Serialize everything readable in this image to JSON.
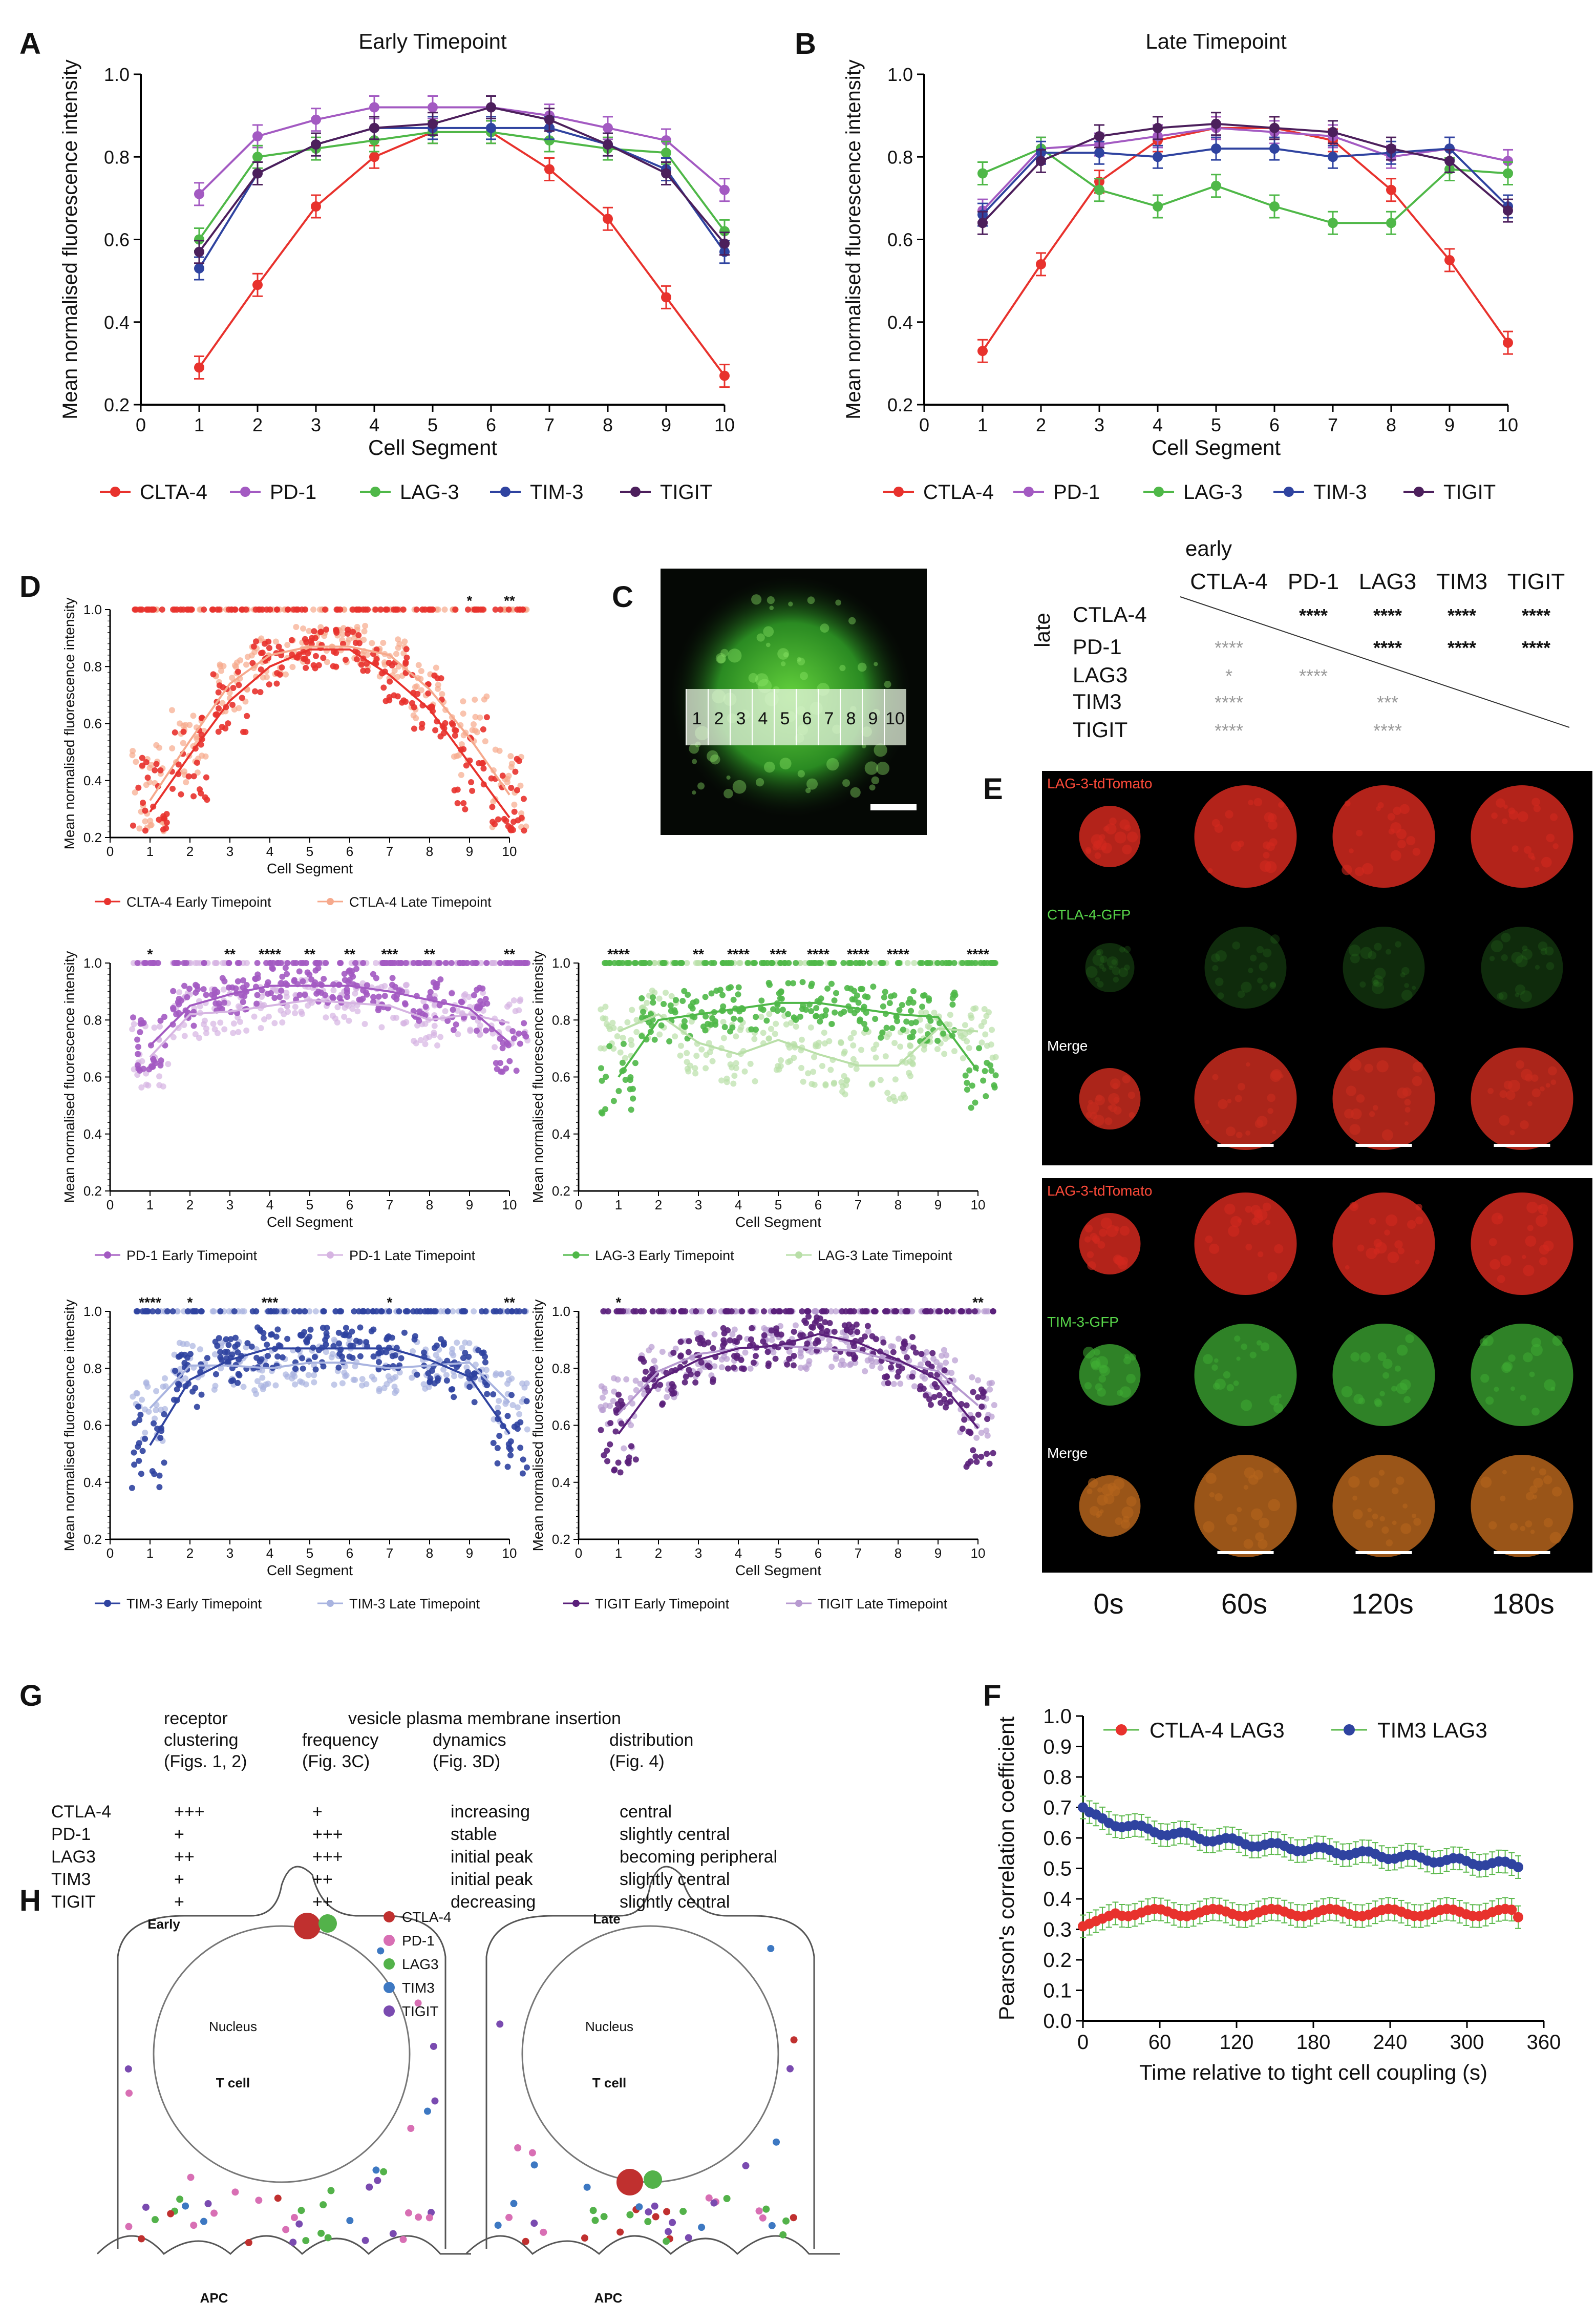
{
  "panels": {
    "A": "A",
    "B": "B",
    "C": "C",
    "D": "D",
    "E": "E",
    "F": "F",
    "G": "G",
    "H": "H"
  },
  "colors": {
    "CTLA-4": "#e8322d",
    "PD-1": "#a35ac2",
    "LAG-3": "#4fb848",
    "TIM-3": "#2f43a0",
    "TIGIT": "#4c1f5c",
    "grid": "#000000"
  },
  "chart_data": [
    {
      "id": "A",
      "type": "line",
      "title": "Early Timepoint",
      "xlabel": "Cell Segment",
      "ylabel": "Mean normalised fluorescence intensity",
      "xlim": [
        0,
        10
      ],
      "ylim": [
        0.2,
        1.0
      ],
      "xticks": [
        "0",
        "1",
        "2",
        "3",
        "4",
        "5",
        "6",
        "7",
        "8",
        "9",
        "10"
      ],
      "yticks": [
        "0.2",
        "0.4",
        "0.6",
        "0.8",
        "1.0"
      ],
      "x": [
        1,
        2,
        3,
        4,
        5,
        6,
        7,
        8,
        9,
        10
      ],
      "series": [
        {
          "name": "CLTA-4",
          "key": "CTLA-4",
          "values": [
            0.29,
            0.49,
            0.68,
            0.8,
            0.86,
            0.86,
            0.77,
            0.65,
            0.46,
            0.27
          ]
        },
        {
          "name": "PD-1",
          "key": "PD-1",
          "values": [
            0.71,
            0.85,
            0.89,
            0.92,
            0.92,
            0.92,
            0.9,
            0.87,
            0.84,
            0.72
          ]
        },
        {
          "name": "LAG-3",
          "key": "LAG-3",
          "values": [
            0.6,
            0.8,
            0.82,
            0.84,
            0.86,
            0.86,
            0.84,
            0.82,
            0.81,
            0.62
          ]
        },
        {
          "name": "TIM-3",
          "key": "TIM-3",
          "values": [
            0.53,
            0.76,
            0.83,
            0.87,
            0.87,
            0.87,
            0.87,
            0.83,
            0.77,
            0.57
          ]
        },
        {
          "name": "TIGIT",
          "key": "TIGIT",
          "values": [
            0.57,
            0.76,
            0.83,
            0.87,
            0.88,
            0.92,
            0.89,
            0.83,
            0.76,
            0.59
          ]
        }
      ]
    },
    {
      "id": "B",
      "type": "line",
      "title": "Late Timepoint",
      "xlabel": "Cell Segment",
      "ylabel": "Mean normalised fluorescence intensity",
      "xlim": [
        0,
        10
      ],
      "ylim": [
        0.2,
        1.0
      ],
      "xticks": [
        "0",
        "1",
        "2",
        "3",
        "4",
        "5",
        "6",
        "7",
        "8",
        "9",
        "10"
      ],
      "yticks": [
        "0.2",
        "0.4",
        "0.6",
        "0.8",
        "1.0"
      ],
      "x": [
        1,
        2,
        3,
        4,
        5,
        6,
        7,
        8,
        9,
        10
      ],
      "series": [
        {
          "name": "CTLA-4",
          "key": "CTLA-4",
          "values": [
            0.33,
            0.54,
            0.74,
            0.84,
            0.87,
            0.87,
            0.84,
            0.72,
            0.55,
            0.35
          ]
        },
        {
          "name": "PD-1",
          "key": "PD-1",
          "values": [
            0.67,
            0.82,
            0.83,
            0.85,
            0.87,
            0.86,
            0.85,
            0.8,
            0.82,
            0.79
          ]
        },
        {
          "name": "LAG-3",
          "key": "LAG-3",
          "values": [
            0.76,
            0.82,
            0.72,
            0.68,
            0.73,
            0.68,
            0.64,
            0.64,
            0.77,
            0.76
          ]
        },
        {
          "name": "TIM-3",
          "key": "TIM-3",
          "values": [
            0.66,
            0.81,
            0.81,
            0.8,
            0.82,
            0.82,
            0.8,
            0.81,
            0.82,
            0.68
          ]
        },
        {
          "name": "TIGIT",
          "key": "TIGIT",
          "values": [
            0.64,
            0.79,
            0.85,
            0.87,
            0.88,
            0.87,
            0.86,
            0.82,
            0.79,
            0.67
          ]
        }
      ]
    },
    {
      "id": "D1",
      "type": "scatter",
      "xlabel": "Cell Segment",
      "ylabel": "Mean normalised fluorescence intensity",
      "key": "CTLA-4",
      "early_color": "#e8322d",
      "late_color": "#f6a98c",
      "early_name": "CLTA-4 Early Timepoint",
      "late_name": "CTLA-4 Late Timepoint",
      "x": [
        1,
        2,
        3,
        4,
        5,
        6,
        7,
        8,
        9,
        10
      ],
      "early": [
        0.29,
        0.49,
        0.68,
        0.8,
        0.86,
        0.86,
        0.77,
        0.65,
        0.46,
        0.27
      ],
      "late": [
        0.33,
        0.54,
        0.74,
        0.84,
        0.87,
        0.87,
        0.84,
        0.72,
        0.55,
        0.35
      ],
      "sig": [
        "",
        "",
        "",
        "",
        "",
        "",
        "",
        "",
        "*",
        "**"
      ]
    },
    {
      "id": "D2",
      "type": "scatter",
      "xlabel": "Cell Segment",
      "ylabel": "Mean normalised fluorescence intensity",
      "key": "PD-1",
      "early_color": "#a35ac2",
      "late_color": "#d6b4e2",
      "early_name": "PD-1 Early Timepoint",
      "late_name": "PD-1 Late Timepoint",
      "x": [
        1,
        2,
        3,
        4,
        5,
        6,
        7,
        8,
        9,
        10
      ],
      "early": [
        0.71,
        0.85,
        0.89,
        0.92,
        0.92,
        0.92,
        0.9,
        0.87,
        0.84,
        0.72
      ],
      "late": [
        0.67,
        0.82,
        0.83,
        0.85,
        0.87,
        0.86,
        0.85,
        0.8,
        0.82,
        0.79
      ],
      "sig": [
        "*",
        "",
        "**",
        "****",
        "**",
        "**",
        "***",
        "**",
        "",
        "**"
      ]
    },
    {
      "id": "D3",
      "type": "scatter",
      "xlabel": "Cell Segment",
      "ylabel": "Mean normalised fluorescence intensity",
      "key": "LAG-3",
      "early_color": "#4fb848",
      "late_color": "#b9dfa8",
      "early_name": "LAG-3 Early Timepoint",
      "late_name": "LAG-3 Late Timepoint",
      "x": [
        1,
        2,
        3,
        4,
        5,
        6,
        7,
        8,
        9,
        10
      ],
      "early": [
        0.6,
        0.8,
        0.82,
        0.84,
        0.86,
        0.86,
        0.84,
        0.82,
        0.81,
        0.62
      ],
      "late": [
        0.76,
        0.82,
        0.72,
        0.68,
        0.73,
        0.68,
        0.64,
        0.64,
        0.77,
        0.76
      ],
      "sig": [
        "****",
        "",
        "**",
        "****",
        "***",
        "****",
        "****",
        "****",
        "",
        "****"
      ]
    },
    {
      "id": "D4",
      "type": "scatter",
      "xlabel": "Cell Segment",
      "ylabel": "Mean normalised fluorescence intensity",
      "key": "TIM-3",
      "early_color": "#2f43a0",
      "late_color": "#a9b4e0",
      "early_name": "TIM-3 Early Timepoint",
      "late_name": "TIM-3 Late Timepoint",
      "x": [
        1,
        2,
        3,
        4,
        5,
        6,
        7,
        8,
        9,
        10
      ],
      "early": [
        0.53,
        0.76,
        0.83,
        0.87,
        0.87,
        0.87,
        0.87,
        0.83,
        0.77,
        0.57
      ],
      "late": [
        0.66,
        0.81,
        0.81,
        0.8,
        0.82,
        0.82,
        0.8,
        0.81,
        0.82,
        0.68
      ],
      "sig": [
        "****",
        "*",
        "",
        "***",
        "",
        "",
        "*",
        "",
        "",
        "**"
      ]
    },
    {
      "id": "D5",
      "type": "scatter",
      "xlabel": "Cell Segment",
      "ylabel": "Mean normalised fluorescence intensity",
      "key": "TIGIT",
      "early_color": "#5a1f7a",
      "late_color": "#b79ad0",
      "early_name": "TIGIT Early Timepoint",
      "late_name": "TIGIT Late Timepoint",
      "x": [
        1,
        2,
        3,
        4,
        5,
        6,
        7,
        8,
        9,
        10
      ],
      "early": [
        0.57,
        0.76,
        0.83,
        0.87,
        0.88,
        0.92,
        0.89,
        0.83,
        0.76,
        0.59
      ],
      "late": [
        0.64,
        0.79,
        0.85,
        0.87,
        0.88,
        0.87,
        0.86,
        0.82,
        0.79,
        0.67
      ],
      "sig": [
        "*",
        "",
        "",
        "",
        "",
        "",
        "",
        "",
        "",
        "**"
      ]
    },
    {
      "id": "F",
      "type": "line",
      "xlabel": "Time relative to tight cell coupling (s)",
      "ylabel": "Pearson's correlation coefficient",
      "xlim": [
        0,
        360
      ],
      "ylim": [
        0.0,
        1.0
      ],
      "xticks": [
        "0",
        "60",
        "120",
        "180",
        "240",
        "300",
        "360"
      ],
      "yticks": [
        "0.0",
        "0.1",
        "0.2",
        "0.3",
        "0.4",
        "0.5",
        "0.6",
        "0.7",
        "0.8",
        "0.9",
        "1.0"
      ],
      "series": [
        {
          "name": "CTLA-4 LAG3",
          "color": "#e8322d",
          "start": 0.31,
          "end": 0.34,
          "peak": 0.37
        },
        {
          "name": "TIM3 LAG3",
          "color": "#2f43a0",
          "start": 0.7,
          "end": 0.51,
          "peak": 0.7
        }
      ],
      "t_end": 340
    }
  ],
  "segments": [
    "1",
    "2",
    "3",
    "4",
    "5",
    "6",
    "7",
    "8",
    "9",
    "10"
  ],
  "stats_table": {
    "early_label": "early",
    "late_label": "late",
    "cols": [
      "CTLA-4",
      "PD-1",
      "LAG3",
      "TIM3",
      "TIGIT"
    ],
    "rows": [
      "CTLA-4",
      "PD-1",
      "LAG3",
      "TIM3",
      "TIGIT"
    ],
    "upper": [
      [
        "",
        "****",
        "****",
        "****",
        "****"
      ],
      [
        "",
        "",
        "****",
        "****",
        "****"
      ]
    ],
    "lower": [
      [
        "****",
        "",
        "",
        "",
        ""
      ],
      [
        "*",
        "****",
        "",
        "",
        ""
      ],
      [
        "****",
        "",
        "***",
        "",
        ""
      ],
      [
        "****",
        "",
        "****",
        "",
        ""
      ]
    ]
  },
  "microscopy": {
    "top_labels": [
      "LAG-3-tdTomato",
      "CTLA-4-GFP",
      "Merge"
    ],
    "bottom_labels": [
      "LAG-3-tdTomato",
      "TIM-3-GFP",
      "Merge"
    ],
    "times": [
      "0s",
      "60s",
      "120s",
      "180s"
    ]
  },
  "table_G": {
    "header1": {
      "col1": "receptor",
      "col2": "vesicle plasma membrane insertion"
    },
    "header2": {
      "col1": "clustering",
      "col2": "frequency",
      "col3": "dynamics",
      "col4": "distribution"
    },
    "header3": {
      "col1": "(Figs. 1, 2)",
      "col2": "(Fig. 3C)",
      "col3": "(Fig. 3D)",
      "col4": "(Fig. 4)"
    },
    "rows": [
      {
        "name": "CTLA-4",
        "clustering": "+++",
        "frequency": "+",
        "dynamics": "increasing",
        "distribution": "central"
      },
      {
        "name": "PD-1",
        "clustering": "+",
        "frequency": "+++",
        "dynamics": "stable",
        "distribution": "slightly central"
      },
      {
        "name": "LAG3",
        "clustering": "++",
        "frequency": "+++",
        "dynamics": "initial peak",
        "distribution": "becoming peripheral"
      },
      {
        "name": "TIM3",
        "clustering": "+",
        "frequency": "++",
        "dynamics": "initial peak",
        "distribution": "slightly central"
      },
      {
        "name": "TIGIT",
        "clustering": "+",
        "frequency": "++",
        "dynamics": "decreasing",
        "distribution": "slightly central"
      }
    ]
  },
  "schematic": {
    "early": "Early",
    "late": "Late",
    "nucleus": "Nucleus",
    "tcell": "T cell",
    "apc": "APC",
    "legend": [
      {
        "name": "CTLA-4",
        "color": "#c0302f"
      },
      {
        "name": "PD-1",
        "color": "#d86fb4"
      },
      {
        "name": "LAG3",
        "color": "#53b24a"
      },
      {
        "name": "TIM3",
        "color": "#3d78c2"
      },
      {
        "name": "TIGIT",
        "color": "#7a4bb0"
      }
    ]
  }
}
